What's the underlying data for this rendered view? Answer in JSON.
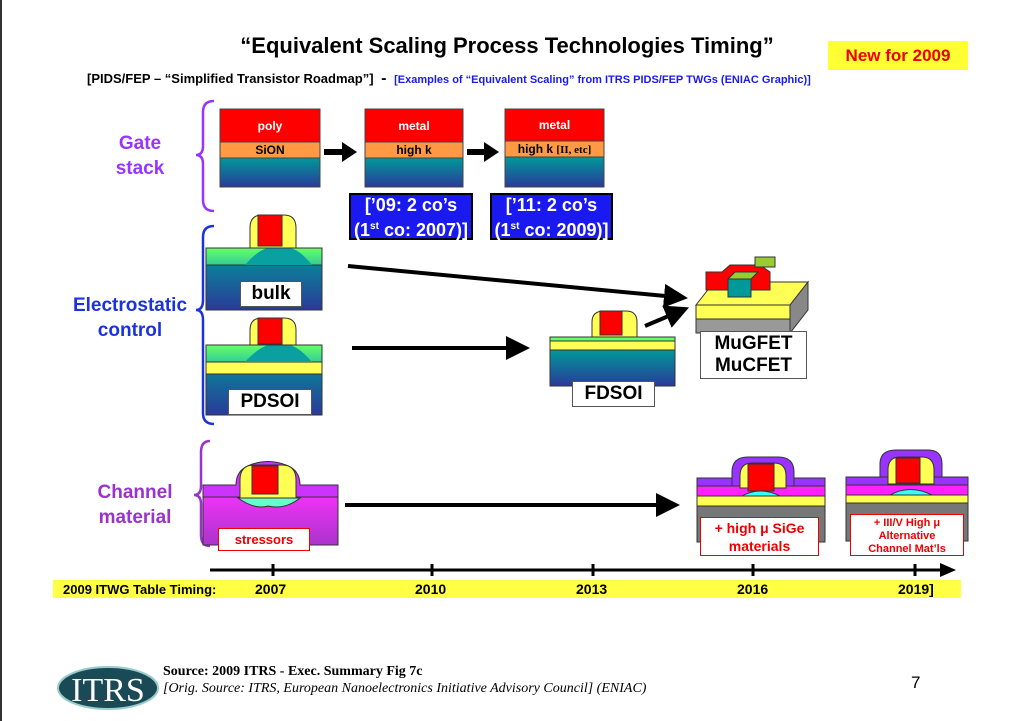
{
  "title": "“Equivalent Scaling Process Technologies Timing”",
  "badge": "New for 2009",
  "subtitle": {
    "main": "[PIDS/FEP – “Simplified Transistor Roadmap”]",
    "dash": "-",
    "examples": "[Examples of “Equivalent Scaling” from ITRS PIDS/FEP TWGs (ENIAC Graphic)]"
  },
  "gate_stack": {
    "label_line1": "Gate",
    "label_line2": "stack",
    "stacks": [
      {
        "top": "poly",
        "middle": "SiON"
      },
      {
        "top": "metal",
        "middle": "high k"
      },
      {
        "top": "metal",
        "middle": "high k",
        "middle_suffix": "[II, etc]"
      }
    ],
    "notes": [
      {
        "line1": "[’09:  2 co’s",
        "line2_pre": "(1",
        "sup": "st",
        "line2_post": " co: 2007)]"
      },
      {
        "line1": "[’11:  2 co’s",
        "line2_pre": "(1",
        "sup": "st",
        "line2_post": " co: 2009)]"
      }
    ]
  },
  "electrostatic": {
    "label_line1": "Electrostatic",
    "label_line2": "control",
    "devices": {
      "bulk": "bulk",
      "pdsoi": "PDSOI",
      "fdsoi": "FDSOI",
      "mugfet_line1": "MuGFET",
      "mugfet_line2": "MuCFET"
    }
  },
  "channel": {
    "label_line1": "Channel",
    "label_line2": "material",
    "stressors": "stressors",
    "sige_line1": "+ high μ SiGe",
    "sige_line2": "materials",
    "iiiv_line1": "+ III/V High μ",
    "iiiv_line2": "Alternative",
    "iiiv_line3": "Channel Mat’ls"
  },
  "timeline": {
    "label": "2009 ITWG Table Timing:",
    "years": [
      "2007",
      "2010",
      "2013",
      "2016",
      "2019]"
    ]
  },
  "footer": {
    "logo": "ITRS",
    "source": "Source:  2009 ITRS - Exec. Summary Fig 7c",
    "orig_source": "[Orig. Source: ITRS, European Nanoelectronics Initiative Advisory Council] (ENIAC)",
    "page_number": "7"
  },
  "colors": {
    "gate_label": "#9933ff",
    "electrostatic_label": "#1a33dd",
    "channel_label": "#9933cc",
    "badge_bg": "#ffff33",
    "badge_text": "#ee0000",
    "note_bg": "#1a1af0"
  }
}
